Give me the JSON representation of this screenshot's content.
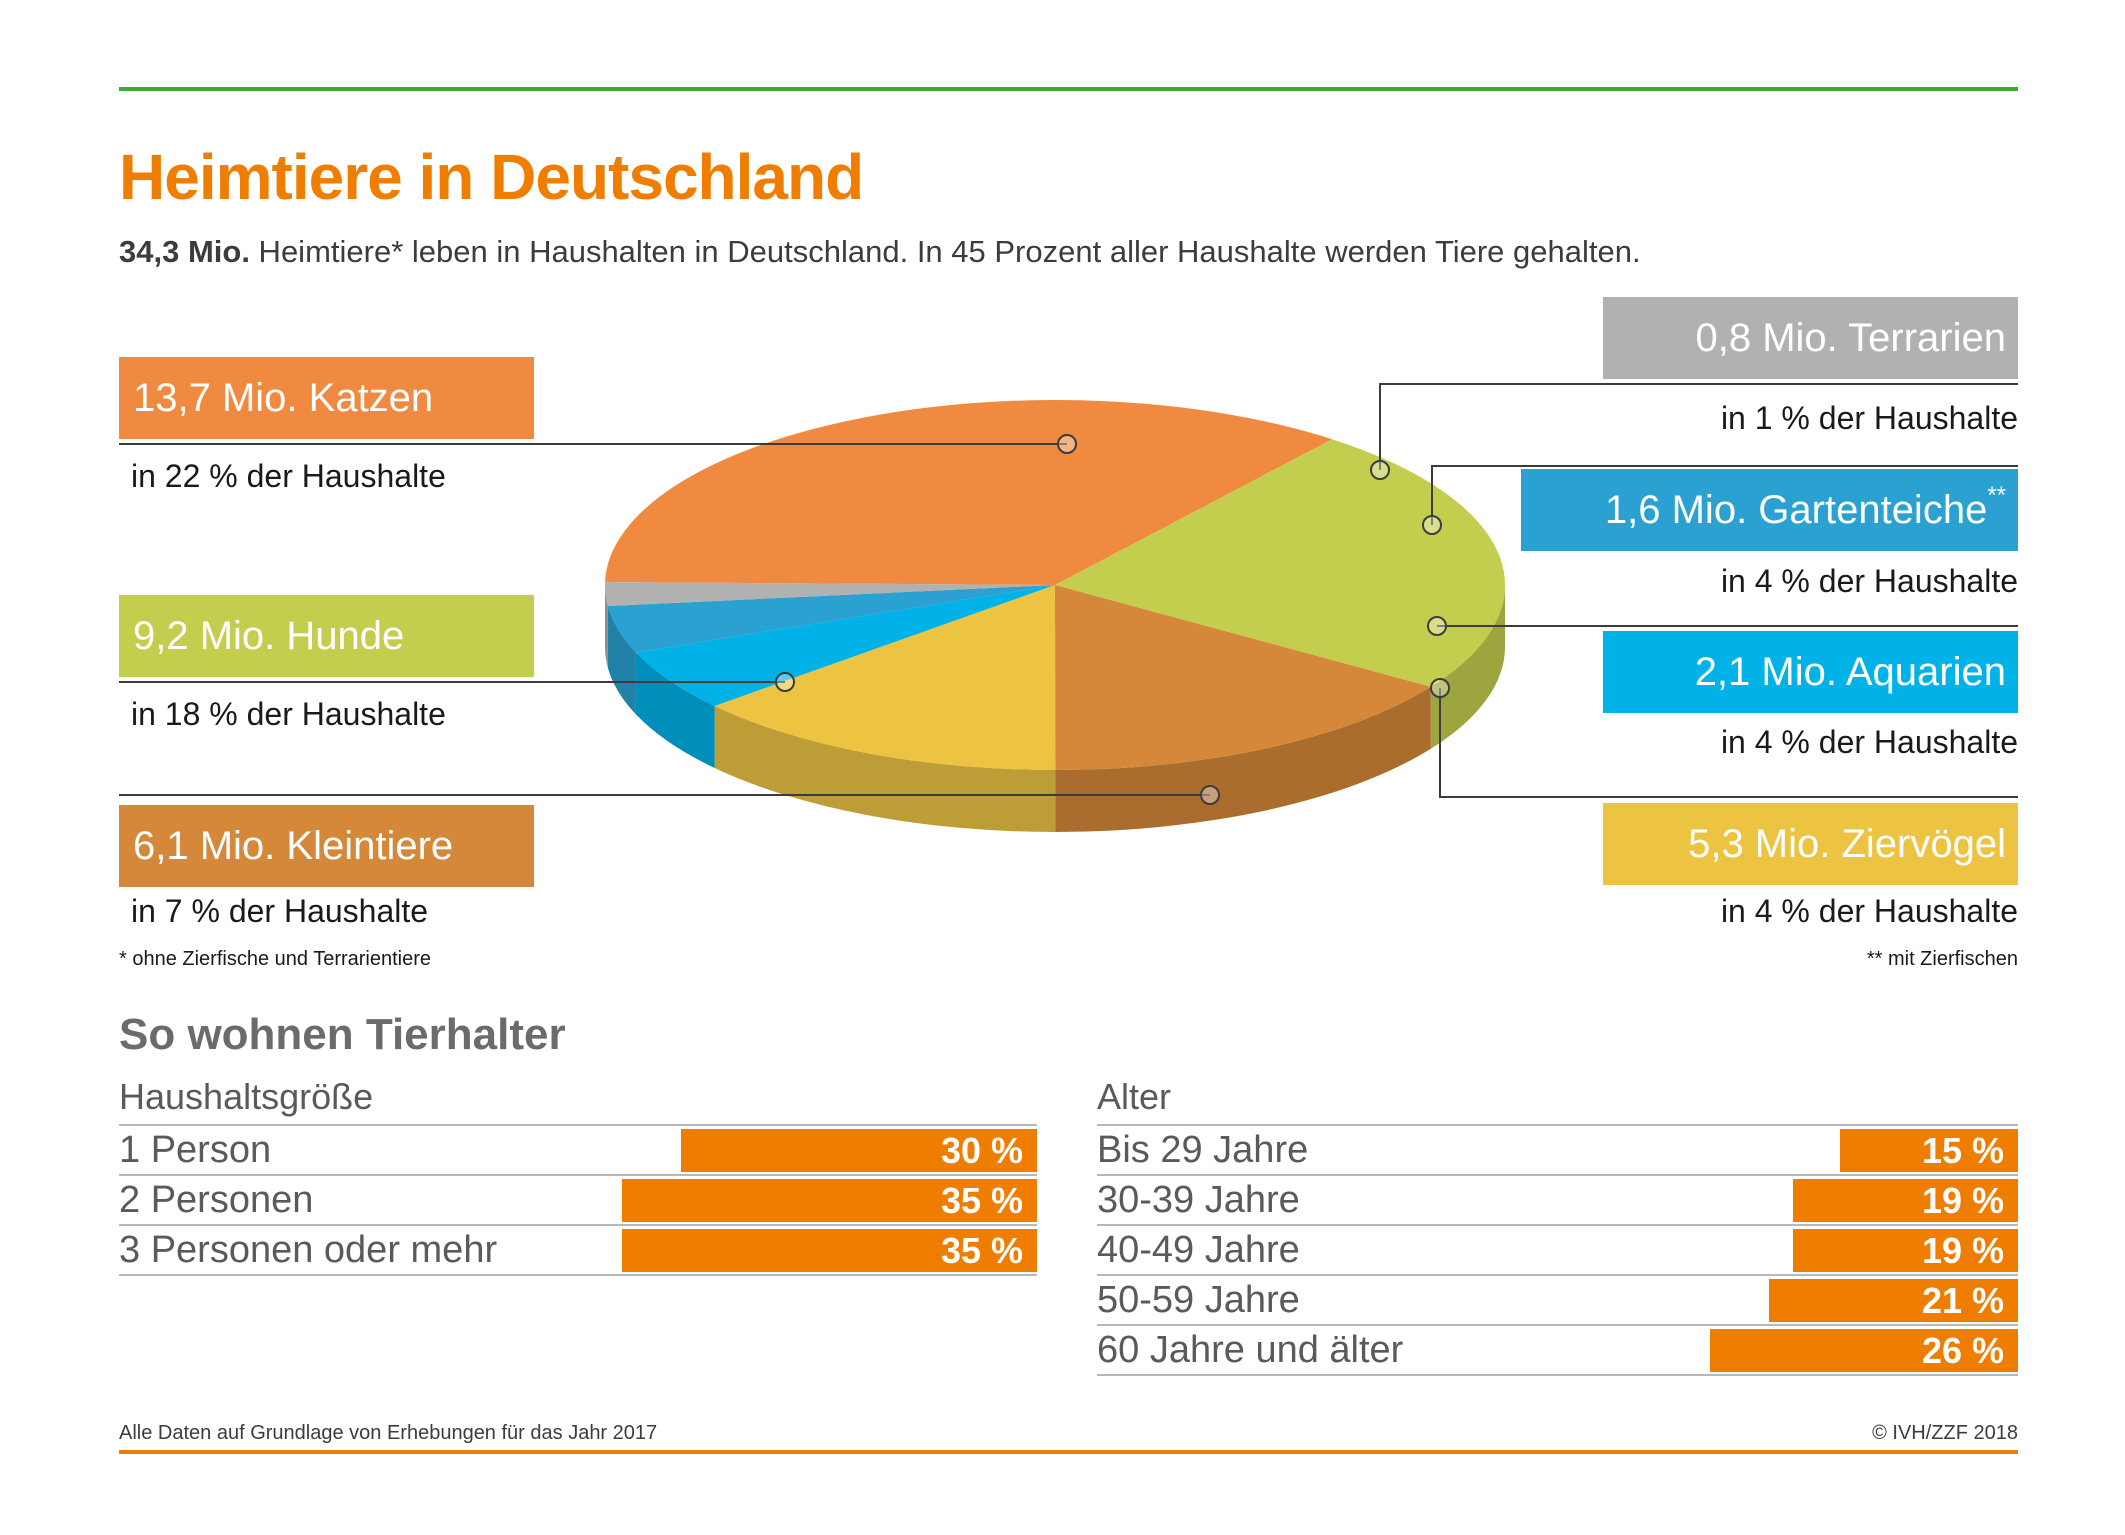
{
  "header": {
    "title": "Heimtiere in Deutschland",
    "subtitle_bold": "34,3 Mio.",
    "subtitle_rest": " Heimtiere* leben in Haushalten in Deutschland. In 45 Prozent aller Haushalte werden Tiere gehalten."
  },
  "legend": {
    "katzen": {
      "label": "13,7 Mio. Katzen",
      "sub": "in 22 % der Haushalte"
    },
    "hunde": {
      "label": "9,2 Mio. Hunde",
      "sub": "in 18 % der Haushalte"
    },
    "kleintiere": {
      "label": "6,1 Mio. Kleintiere",
      "sub": "in 7 % der Haushalte"
    },
    "terrarien": {
      "label": "0,8 Mio. Terrarien",
      "sub": "in 1 % der Haushalte"
    },
    "gartenteiche": {
      "label": "1,6 Mio. Gartenteiche",
      "mark": "**",
      "sub": "in 4 % der Haushalte"
    },
    "aquarien": {
      "label": "2,1 Mio. Aquarien",
      "sub": "in 4 % der Haushalte"
    },
    "ziervoegel": {
      "label": "5,3 Mio. Ziervögel",
      "sub": "in 4 % der Haushalte"
    }
  },
  "notes": {
    "left": "* ohne Zierfische und Terrarientiere",
    "right": "** mit Zierfischen"
  },
  "section": {
    "title": "So wohnen Tierhalter",
    "household": {
      "heading": "Haushaltsgröße",
      "rows": [
        {
          "label": "1 Person",
          "value": "30 %",
          "pct": 30
        },
        {
          "label": "2 Personen",
          "value": "35 %",
          "pct": 35
        },
        {
          "label": "3 Personen oder mehr",
          "value": "35 %",
          "pct": 35
        }
      ]
    },
    "age": {
      "heading": "Alter",
      "rows": [
        {
          "label": "Bis 29 Jahre",
          "value": "15 %",
          "pct": 15
        },
        {
          "label": "30-39 Jahre",
          "value": "19 %",
          "pct": 19
        },
        {
          "label": "40-49 Jahre",
          "value": "19 %",
          "pct": 19
        },
        {
          "label": "50-59 Jahre",
          "value": "21 %",
          "pct": 21
        },
        {
          "label": "60 Jahre und älter",
          "value": "26 %",
          "pct": 26
        }
      ]
    }
  },
  "footer": {
    "left": "Alle Daten auf Grundlage von Erhebungen für das Jahr 2017",
    "right": "© IVH/ZZF 2018"
  },
  "colors": {
    "accent": "#ef7d00",
    "green_rule": "#3aaa35",
    "katzen": "#f08a40",
    "hunde": "#c3ce4e",
    "kleintiere": "#d5883a",
    "terrarien": "#b1b1b1",
    "gartenteiche": "#2aa1d0",
    "aquarien": "#00b2e8",
    "ziervoegel": "#ecc442"
  },
  "chart_data": [
    {
      "type": "pie",
      "title": "Heimtiere in Deutschland",
      "unit": "Mio.",
      "categories": [
        "Katzen",
        "Hunde",
        "Kleintiere",
        "Ziervögel",
        "Aquarien",
        "Gartenteiche",
        "Terrarien"
      ],
      "values": [
        13.7,
        9.2,
        6.1,
        5.3,
        2.1,
        1.6,
        0.8
      ],
      "households_pct": [
        22,
        18,
        7,
        4,
        4,
        4,
        1
      ],
      "total": 34.3
    },
    {
      "type": "bar",
      "title": "Haushaltsgröße",
      "categories": [
        "1 Person",
        "2 Personen",
        "3 Personen oder mehr"
      ],
      "values": [
        30,
        35,
        35
      ],
      "unit": "%"
    },
    {
      "type": "bar",
      "title": "Alter",
      "categories": [
        "Bis 29 Jahre",
        "30-39 Jahre",
        "40-49 Jahre",
        "50-59 Jahre",
        "60 Jahre und älter"
      ],
      "values": [
        15,
        19,
        19,
        21,
        26
      ],
      "unit": "%"
    }
  ]
}
